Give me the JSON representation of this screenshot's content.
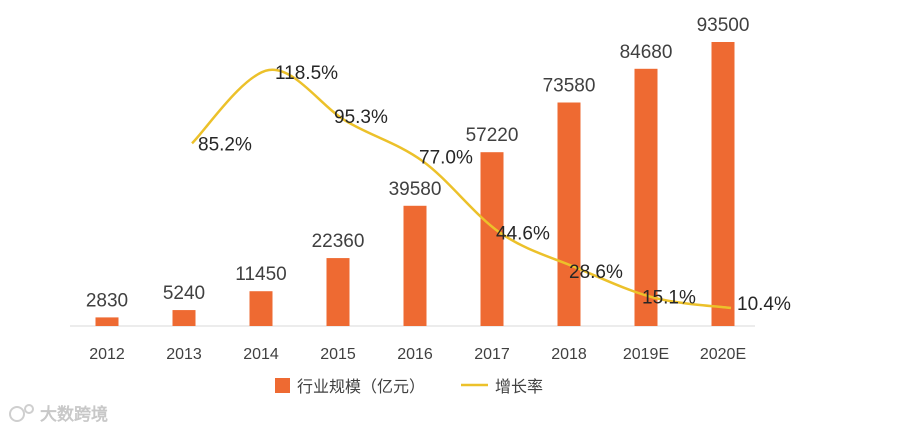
{
  "chart_data": {
    "type": "bar",
    "categories": [
      "2012",
      "2013",
      "2014",
      "2015",
      "2016",
      "2017",
      "2018",
      "2019E",
      "2020E"
    ],
    "series": [
      {
        "name": "行业规模（亿元）",
        "type": "bar",
        "values": [
          2830,
          5240,
          11450,
          22360,
          39580,
          57220,
          73580,
          84680,
          93500
        ],
        "labels": [
          "2830",
          "5240",
          "11450",
          "22360",
          "39580",
          "57220",
          "73580",
          "84680",
          "93500"
        ]
      },
      {
        "name": "增长率",
        "type": "line",
        "values": [
          null,
          85.2,
          118.5,
          95.3,
          77.0,
          44.6,
          28.6,
          15.1,
          10.4
        ],
        "labels": [
          "",
          "85.2%",
          "118.5%",
          "95.3%",
          "77.0%",
          "44.6%",
          "28.6%",
          "15.1%",
          "10.4%"
        ]
      }
    ],
    "legend": {
      "position": "bottom"
    },
    "grid": false
  },
  "colors": {
    "bar": "#ee6a32",
    "line": "#ecc12a",
    "axis": "#d9d9d9"
  },
  "watermark": {
    "text": "大数跨境",
    "icon": "logo-icon"
  }
}
